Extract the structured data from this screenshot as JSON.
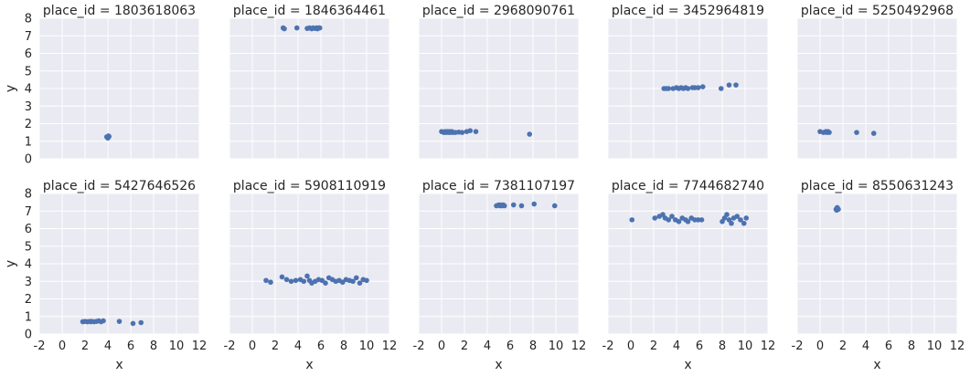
{
  "chart_data": {
    "type": "scatter",
    "layout": {
      "rows": 2,
      "cols": 5,
      "sharex": true,
      "sharey": true
    },
    "xlabel": "x",
    "ylabel": "y",
    "xlim": [
      -2,
      12
    ],
    "ylim": [
      0,
      8
    ],
    "xticks": [
      -2,
      0,
      2,
      4,
      6,
      8,
      10,
      12
    ],
    "yticks": [
      0,
      1,
      2,
      3,
      4,
      5,
      6,
      7,
      8
    ],
    "grid": true,
    "colors": {
      "background": "#eaeaf2",
      "grid": "#ffffff",
      "marker": "#4c72b0"
    },
    "facets": [
      {
        "title": "place_id = 1803618063",
        "x": [
          3.9,
          4.0,
          4.05,
          3.95,
          4.1,
          4.0
        ],
        "y": [
          1.25,
          1.2,
          1.3,
          1.22,
          1.27,
          1.18
        ]
      },
      {
        "title": "place_id = 1846364461",
        "x": [
          2.7,
          2.8,
          3.9,
          4.8,
          5.0,
          5.2,
          5.3,
          5.5,
          5.6,
          5.7,
          5.8,
          5.9
        ],
        "y": [
          7.45,
          7.4,
          7.45,
          7.42,
          7.45,
          7.4,
          7.45,
          7.42,
          7.45,
          7.4,
          7.45,
          7.45
        ]
      },
      {
        "title": "place_id = 2968090761",
        "x": [
          0.0,
          0.2,
          0.3,
          0.4,
          0.5,
          0.6,
          0.7,
          0.8,
          0.9,
          1.0,
          1.2,
          1.5,
          1.8,
          2.2,
          2.5,
          3.0,
          7.7
        ],
        "y": [
          1.55,
          1.5,
          1.55,
          1.5,
          1.55,
          1.5,
          1.55,
          1.5,
          1.55,
          1.5,
          1.5,
          1.52,
          1.5,
          1.55,
          1.6,
          1.55,
          1.4
        ]
      },
      {
        "title": "place_id = 3452964819",
        "x": [
          2.9,
          3.1,
          3.3,
          3.7,
          4.0,
          4.2,
          4.4,
          4.6,
          4.8,
          5.0,
          5.4,
          5.6,
          5.9,
          6.3,
          7.9,
          8.6,
          9.2
        ],
        "y": [
          4.0,
          4.0,
          4.0,
          4.0,
          4.05,
          4.0,
          4.05,
          4.0,
          4.05,
          4.0,
          4.05,
          4.05,
          4.05,
          4.1,
          4.0,
          4.2,
          4.2
        ]
      },
      {
        "title": "place_id = 5250492968",
        "x": [
          0.0,
          0.3,
          0.5,
          0.6,
          0.7,
          0.8,
          3.2,
          4.7
        ],
        "y": [
          1.55,
          1.5,
          1.55,
          1.5,
          1.55,
          1.5,
          1.5,
          1.45
        ]
      },
      {
        "title": "place_id = 5427646526",
        "x": [
          1.8,
          2.0,
          2.2,
          2.4,
          2.5,
          2.6,
          2.8,
          3.0,
          3.2,
          3.4,
          3.6,
          5.0,
          6.2,
          6.9
        ],
        "y": [
          0.7,
          0.72,
          0.7,
          0.72,
          0.7,
          0.72,
          0.7,
          0.72,
          0.75,
          0.7,
          0.75,
          0.72,
          0.6,
          0.65
        ]
      },
      {
        "title": "place_id = 5908110919",
        "x": [
          1.2,
          1.6,
          2.6,
          3.0,
          3.4,
          3.8,
          4.2,
          4.5,
          4.8,
          5.0,
          5.2,
          5.5,
          5.8,
          6.1,
          6.4,
          6.7,
          7.0,
          7.3,
          7.6,
          7.9,
          8.2,
          8.5,
          8.8,
          9.1,
          9.4,
          9.7,
          10.0
        ],
        "y": [
          3.05,
          2.95,
          3.25,
          3.1,
          3.0,
          3.05,
          3.1,
          3.0,
          3.3,
          3.05,
          2.9,
          3.0,
          3.1,
          3.05,
          2.9,
          3.2,
          3.1,
          3.0,
          3.05,
          2.95,
          3.1,
          3.05,
          3.0,
          3.2,
          2.9,
          3.1,
          3.05
        ]
      },
      {
        "title": "place_id = 7381107197",
        "x": [
          4.8,
          5.0,
          5.1,
          5.2,
          5.3,
          5.4,
          5.5,
          6.3,
          7.0,
          8.1,
          9.9
        ],
        "y": [
          7.3,
          7.35,
          7.3,
          7.35,
          7.3,
          7.35,
          7.3,
          7.35,
          7.3,
          7.4,
          7.3
        ]
      },
      {
        "title": "place_id = 7744682740",
        "x": [
          0.1,
          2.1,
          2.5,
          2.8,
          3.0,
          3.3,
          3.6,
          3.9,
          4.2,
          4.5,
          4.8,
          5.0,
          5.3,
          5.6,
          5.9,
          6.2,
          8.0,
          8.2,
          8.4,
          8.6,
          8.8,
          9.0,
          9.3,
          9.6,
          9.9,
          10.1
        ],
        "y": [
          6.5,
          6.6,
          6.7,
          6.8,
          6.6,
          6.5,
          6.7,
          6.5,
          6.4,
          6.6,
          6.5,
          6.4,
          6.6,
          6.5,
          6.5,
          6.5,
          6.4,
          6.6,
          6.8,
          6.5,
          6.3,
          6.6,
          6.7,
          6.5,
          6.3,
          6.6
        ]
      },
      {
        "title": "place_id = 8550631243",
        "x": [
          1.4,
          1.5,
          1.6,
          1.5,
          1.45,
          1.55
        ],
        "y": [
          7.1,
          7.15,
          7.1,
          7.2,
          7.05,
          7.12
        ]
      }
    ]
  }
}
